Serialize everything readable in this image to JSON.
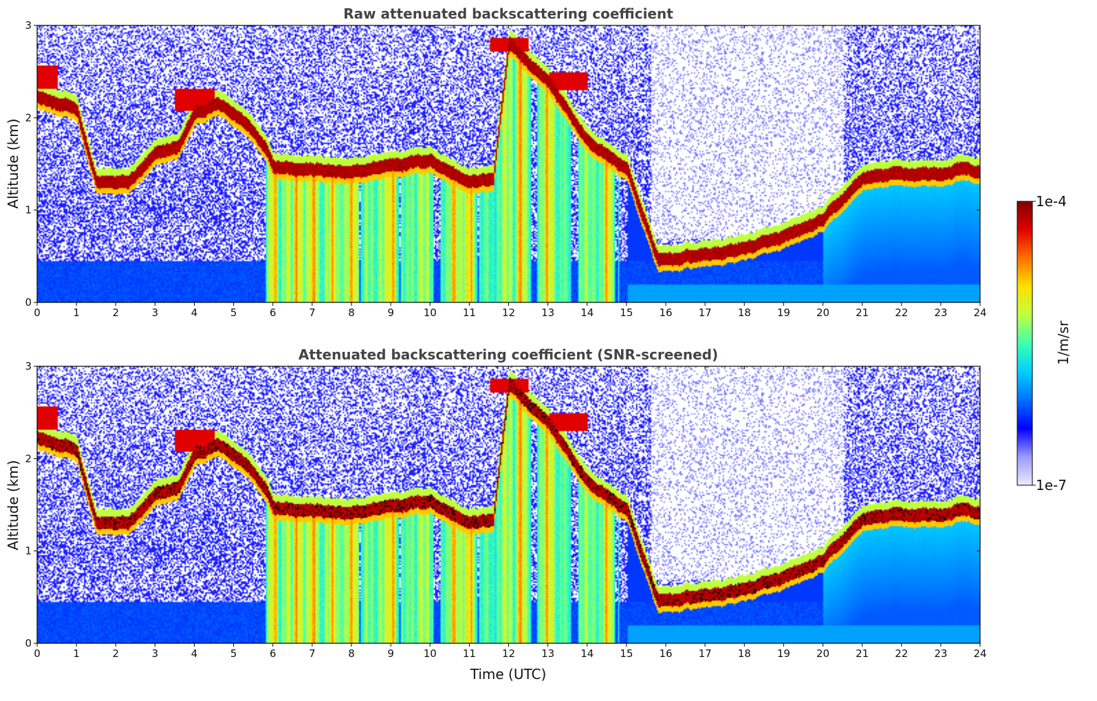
{
  "chart_data": [
    {
      "type": "heatmap",
      "title": "Raw attenuated backscattering coefficient",
      "xlabel": "",
      "ylabel": "Altitude (km)",
      "xlim": [
        0,
        24
      ],
      "ylim": [
        0,
        3
      ],
      "xticks": [
        "0",
        "1",
        "2",
        "3",
        "4",
        "5",
        "6",
        "7",
        "8",
        "9",
        "10",
        "11",
        "12",
        "13",
        "14",
        "15",
        "16",
        "17",
        "18",
        "19",
        "20",
        "21",
        "22",
        "23",
        "24"
      ],
      "yticks": [
        "0",
        "1",
        "2",
        "3"
      ],
      "screened": false
    },
    {
      "type": "heatmap",
      "title": "Attenuated backscattering coefficient (SNR-screened)",
      "xlabel": "Time (UTC)",
      "ylabel": "Altitude (km)",
      "xlim": [
        0,
        24
      ],
      "ylim": [
        0,
        3
      ],
      "xticks": [
        "0",
        "1",
        "2",
        "3",
        "4",
        "5",
        "6",
        "7",
        "8",
        "9",
        "10",
        "11",
        "12",
        "13",
        "14",
        "15",
        "16",
        "17",
        "18",
        "19",
        "20",
        "21",
        "22",
        "23",
        "24"
      ],
      "yticks": [
        "0",
        "1",
        "2",
        "3"
      ],
      "screened": true
    }
  ],
  "colorbar": {
    "label": "1/m/sr",
    "max_label": "1e-4",
    "min_label": "1e-7",
    "scale": "log",
    "colormap": [
      "#eaeaff",
      "#9a9aff",
      "#0000ff",
      "#0070ff",
      "#00d0ff",
      "#40ffb0",
      "#c0ff40",
      "#ffe000",
      "#ff7000",
      "#e00000",
      "#800000"
    ]
  },
  "scene": {
    "cloud_base_km": [
      [
        0.0,
        2.2
      ],
      [
        0.5,
        2.1
      ],
      [
        1.0,
        2.05
      ],
      [
        1.5,
        1.25
      ],
      [
        2.3,
        1.25
      ],
      [
        3.0,
        1.55
      ],
      [
        3.6,
        1.65
      ],
      [
        4.0,
        2.0
      ],
      [
        4.6,
        2.1
      ],
      [
        5.3,
        1.9
      ],
      [
        5.8,
        1.65
      ],
      [
        6.0,
        1.45
      ],
      [
        7.0,
        1.4
      ],
      [
        8.0,
        1.35
      ],
      [
        9.0,
        1.45
      ],
      [
        10.0,
        1.5
      ],
      [
        11.0,
        1.25
      ],
      [
        11.6,
        1.3
      ],
      [
        12.0,
        2.75
      ],
      [
        13.0,
        2.35
      ],
      [
        14.0,
        1.7
      ],
      [
        15.0,
        1.4
      ],
      [
        15.8,
        0.4
      ],
      [
        16.5,
        0.45
      ],
      [
        17.5,
        0.5
      ],
      [
        18.0,
        0.55
      ],
      [
        19.0,
        0.65
      ],
      [
        20.0,
        0.85
      ],
      [
        21.0,
        1.3
      ],
      [
        22.0,
        1.35
      ],
      [
        23.0,
        1.35
      ],
      [
        23.5,
        1.4
      ],
      [
        24.0,
        1.35
      ]
    ],
    "precip_hours": [
      6.0,
      6.6,
      7.0,
      7.5,
      8.0,
      9.0,
      10.6,
      11.0,
      12.3,
      13.0,
      14.5
    ],
    "upper_layers": [
      [
        0.0,
        2.45,
        0.25
      ],
      [
        4.0,
        2.2,
        0.25
      ],
      [
        12.0,
        2.8,
        0.15
      ],
      [
        13.5,
        2.4,
        0.2
      ]
    ]
  }
}
